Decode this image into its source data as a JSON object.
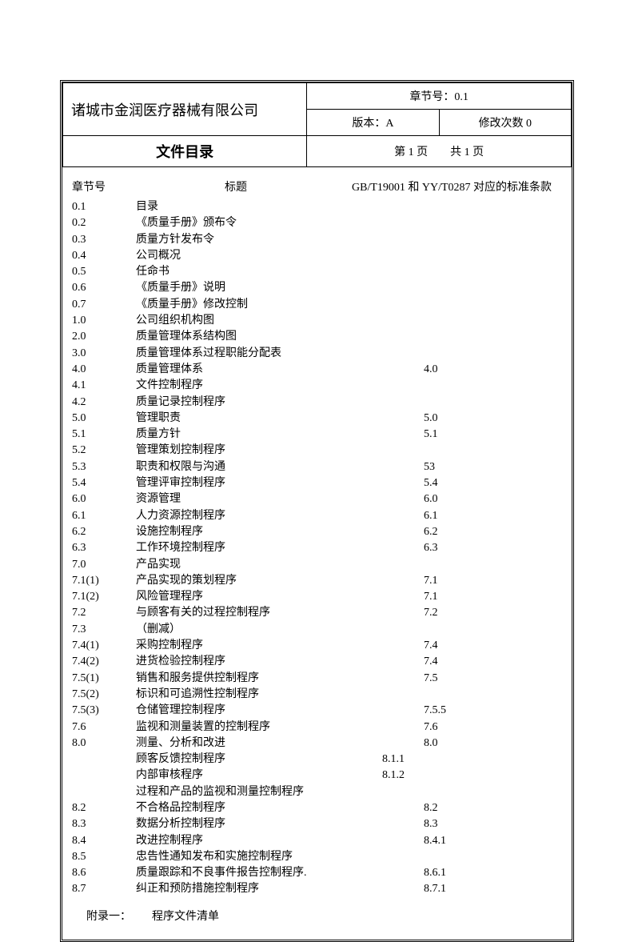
{
  "header": {
    "company": "诸城市金润医疗器械有限公司",
    "chapter_label": "章节号：0.1",
    "version_label": "版本：A",
    "revision_label": "修改次数 0",
    "doc_title": "文件目录",
    "pager": "第 1 页　　共 1 页"
  },
  "column_headers": {
    "section": "章节号",
    "title": "标题",
    "standard": "GB/T19001 和 YY/T0287 对应的标准条款"
  },
  "toc": [
    {
      "sec": "0.1",
      "title": "目录",
      "std": ""
    },
    {
      "sec": "0.2",
      "title": "《质量手册》颁布令",
      "std": ""
    },
    {
      "sec": "0.3",
      "title": "质量方针发布令",
      "std": ""
    },
    {
      "sec": "0.4",
      "title": "公司概况",
      "std": ""
    },
    {
      "sec": "0.5",
      "title": "任命书",
      "std": ""
    },
    {
      "sec": "0.6",
      "title": "《质量手册》说明",
      "std": ""
    },
    {
      "sec": "0.7",
      "title": "《质量手册》修改控制",
      "std": ""
    },
    {
      "sec": "1.0",
      "title": "公司组织机构图",
      "std": ""
    },
    {
      "sec": "2.0",
      "title": "质量管理体系结构图",
      "std": ""
    },
    {
      "sec": "3.0",
      "title": "质量管理体系过程职能分配表",
      "std": ""
    },
    {
      "sec": "4.0",
      "title": "质量管理体系",
      "std": "4.0"
    },
    {
      "sec": "4.1",
      "title": "文件控制程序",
      "std": ""
    },
    {
      "sec": "4.2",
      "title": "质量记录控制程序",
      "std": ""
    },
    {
      "sec": "5.0",
      "title": "管理职责",
      "std": "5.0"
    },
    {
      "sec": "5.1",
      "title": "质量方针",
      "std": "5.1"
    },
    {
      "sec": "5.2",
      "title": "管理策划控制程序",
      "std": ""
    },
    {
      "sec": "5.3",
      "title": "职责和权限与沟通",
      "std": "53"
    },
    {
      "sec": "5.4",
      "title": "管理评审控制程序",
      "std": "5.4"
    },
    {
      "sec": "6.0",
      "title": "资源管理",
      "std": "6.0"
    },
    {
      "sec": "6.1",
      "title": "人力资源控制程序",
      "std": "6.1"
    },
    {
      "sec": "6.2",
      "title": "设施控制程序",
      "std": "6.2"
    },
    {
      "sec": "6.3",
      "title": "工作环境控制程序",
      "std": "6.3"
    },
    {
      "sec": "7.0",
      "title": "产品实现",
      "std": ""
    },
    {
      "sec": "7.1(1)",
      "title": "产品实现的策划程序",
      "std": "7.1"
    },
    {
      "sec": "7.1(2)",
      "title": "风险管理程序",
      "std": "7.1"
    },
    {
      "sec": "7.2",
      "title": "与顾客有关的过程控制程序",
      "std": "7.2"
    },
    {
      "sec": "7.3",
      "title": "（删减）",
      "std": ""
    },
    {
      "sec": "7.4(1)",
      "title": "采购控制程序",
      "std": "7.4"
    },
    {
      "sec": "7.4(2)",
      "title": "进货检验控制程序",
      "std": "7.4"
    },
    {
      "sec": "7.5(1)",
      "title": "销售和服务提供控制程序",
      "std": "7.5"
    },
    {
      "sec": "7.5(2)",
      "title": "标识和可追溯性控制程序",
      "std": ""
    },
    {
      "sec": "7.5(3)",
      "title": "仓储管理控制程序",
      "std": "7.5.5"
    },
    {
      "sec": "7.6",
      "title": "监视和测量装置的控制程序",
      "std": "7.6"
    },
    {
      "sec": "8.0",
      "title": "测量、分析和改进",
      "std": "8.0"
    }
  ],
  "toc_indented": [
    {
      "sec": "",
      "title": "顾客反馈控制程序",
      "std": "8.1.1"
    },
    {
      "sec": "",
      "title": "内部审核程序",
      "std": "8.1.2"
    },
    {
      "sec": "",
      "title": "过程和产品的监视和测量控制程序",
      "std": ""
    }
  ],
  "toc_tail": [
    {
      "sec": "8.2",
      "title": "不合格品控制程序",
      "std": "8.2"
    },
    {
      "sec": "8.3",
      "title": "数据分析控制程序",
      "std": "8.3"
    },
    {
      "sec": "8.4",
      "title": "改进控制程序",
      "std": "8.4.1"
    },
    {
      "sec": "8.5",
      "title": "忠告性通知发布和实施控制程序",
      "std": ""
    },
    {
      "sec": "8.6",
      "title": "质量跟踪和不良事件报告控制程序.",
      "std": "8.6.1"
    },
    {
      "sec": "8.7",
      "title": "纠正和预防措施控制程序",
      "std": "8.7.1"
    }
  ],
  "appendix": {
    "label": "附录一：",
    "title": "程序文件清单"
  }
}
